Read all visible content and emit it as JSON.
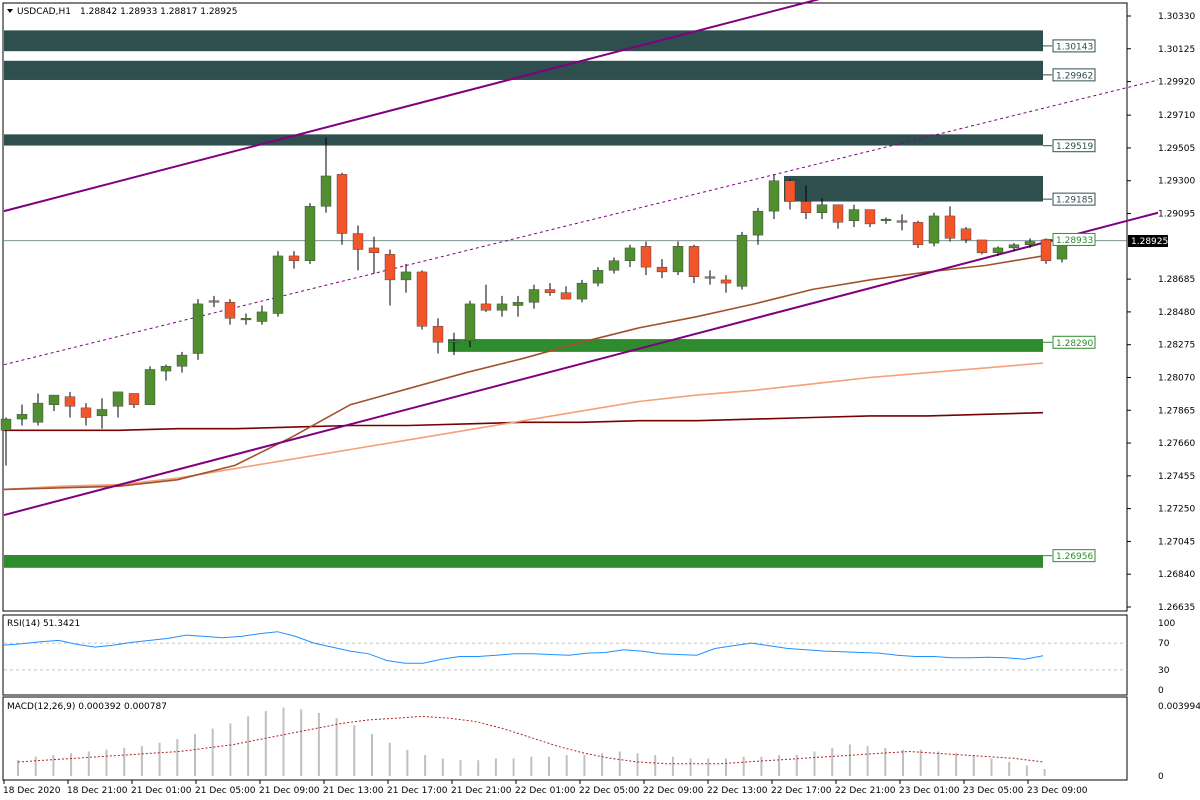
{
  "header": {
    "symbol_timeframe": "USDCAD,H1",
    "ohlc": "1.28842 1.28933 1.28817 1.28925"
  },
  "price_axis": {
    "ticks": [
      "1.30330",
      "1.30125",
      "1.29920",
      "1.29710",
      "1.29505",
      "1.29300",
      "1.29095",
      "1.28685",
      "1.28480",
      "1.28275",
      "1.28070",
      "1.27865",
      "1.27660",
      "1.27455",
      "1.27250",
      "1.27045",
      "1.26840",
      "1.26635"
    ],
    "current_label": "1.28925"
  },
  "levels": [
    {
      "label": "1.30143",
      "color": "#2f4f4f"
    },
    {
      "label": "1.29962",
      "color": "#2f4f4f"
    },
    {
      "label": "1.29519",
      "color": "#2f4f4f"
    },
    {
      "label": "1.29185",
      "color": "#2f4f4f"
    },
    {
      "label": "1.28933",
      "color": "#2e8b2e"
    },
    {
      "label": "1.28290",
      "color": "#2e8b2e"
    },
    {
      "label": "1.26956",
      "color": "#2e8b2e"
    }
  ],
  "rsi": {
    "label": "RSI(14) 51.3421",
    "ticks": [
      "100",
      "70",
      "30",
      "0"
    ]
  },
  "macd": {
    "label": "MACD(12,26,9) 0.000392 0.000787",
    "ticks": [
      "0.003994",
      "0"
    ]
  },
  "time_axis": {
    "labels": [
      "18 Dec 2020",
      "18 Dec 21:00",
      "21 Dec 01:00",
      "21 Dec 05:00",
      "21 Dec 09:00",
      "21 Dec 13:00",
      "21 Dec 17:00",
      "21 Dec 21:00",
      "22 Dec 01:00",
      "22 Dec 05:00",
      "22 Dec 09:00",
      "22 Dec 13:00",
      "22 Dec 17:00",
      "22 Dec 21:00",
      "23 Dec 01:00",
      "23 Dec 05:00",
      "23 Dec 09:00"
    ]
  },
  "colors": {
    "bull": "#4f8f2f",
    "bear": "#f2552a",
    "zone_dark": "#2f4f4f",
    "zone_green": "#2e8b2e",
    "channel": "#800080",
    "ma_fast": "#a0522d",
    "ma_mid": "#f4a07a",
    "ma_slow": "#7a0000",
    "rsi_line": "#1e90ff",
    "macd_signal": "#b22222",
    "macd_hist": "#c0c0c0"
  },
  "chart_data": {
    "type": "candlestick",
    "symbol": "USDCAD",
    "timeframe": "H1",
    "ylim": [
      1.26635,
      1.3033
    ],
    "candles": [
      {
        "o": 1.2774,
        "h": 1.2782,
        "l": 1.2752,
        "c": 1.2781
      },
      {
        "o": 1.2781,
        "h": 1.279,
        "l": 1.2777,
        "c": 1.2784
      },
      {
        "o": 1.2779,
        "h": 1.2797,
        "l": 1.2777,
        "c": 1.2791
      },
      {
        "o": 1.279,
        "h": 1.2796,
        "l": 1.2786,
        "c": 1.2796
      },
      {
        "o": 1.2795,
        "h": 1.2798,
        "l": 1.2782,
        "c": 1.2789
      },
      {
        "o": 1.2788,
        "h": 1.2791,
        "l": 1.2777,
        "c": 1.2782
      },
      {
        "o": 1.2783,
        "h": 1.2794,
        "l": 1.2775,
        "c": 1.2787
      },
      {
        "o": 1.2789,
        "h": 1.2797,
        "l": 1.2782,
        "c": 1.2798
      },
      {
        "o": 1.2797,
        "h": 1.2797,
        "l": 1.2788,
        "c": 1.279
      },
      {
        "o": 1.279,
        "h": 1.2814,
        "l": 1.279,
        "c": 1.2812
      },
      {
        "o": 1.2811,
        "h": 1.2815,
        "l": 1.2805,
        "c": 1.2814
      },
      {
        "o": 1.2814,
        "h": 1.2823,
        "l": 1.281,
        "c": 1.2821
      },
      {
        "o": 1.2822,
        "h": 1.2856,
        "l": 1.2818,
        "c": 1.2853
      },
      {
        "o": 1.2855,
        "h": 1.2858,
        "l": 1.2851,
        "c": 1.2854
      },
      {
        "o": 1.2854,
        "h": 1.2856,
        "l": 1.284,
        "c": 1.2844
      },
      {
        "o": 1.2843,
        "h": 1.2847,
        "l": 1.284,
        "c": 1.2844
      },
      {
        "o": 1.2842,
        "h": 1.2852,
        "l": 1.284,
        "c": 1.2848
      },
      {
        "o": 1.2847,
        "h": 1.2886,
        "l": 1.2845,
        "c": 1.2883
      },
      {
        "o": 1.2883,
        "h": 1.2886,
        "l": 1.2875,
        "c": 1.288
      },
      {
        "o": 1.288,
        "h": 1.2916,
        "l": 1.2878,
        "c": 1.2914
      },
      {
        "o": 1.2914,
        "h": 1.2957,
        "l": 1.291,
        "c": 1.2933
      },
      {
        "o": 1.2934,
        "h": 1.2935,
        "l": 1.289,
        "c": 1.2897
      },
      {
        "o": 1.2897,
        "h": 1.2902,
        "l": 1.2874,
        "c": 1.2887
      },
      {
        "o": 1.2888,
        "h": 1.2895,
        "l": 1.2872,
        "c": 1.2885
      },
      {
        "o": 1.2884,
        "h": 1.2887,
        "l": 1.2852,
        "c": 1.2868
      },
      {
        "o": 1.2868,
        "h": 1.2878,
        "l": 1.286,
        "c": 1.2873
      },
      {
        "o": 1.2873,
        "h": 1.2874,
        "l": 1.2837,
        "c": 1.2839
      },
      {
        "o": 1.2839,
        "h": 1.2844,
        "l": 1.2822,
        "c": 1.2829
      },
      {
        "o": 1.2829,
        "h": 1.2835,
        "l": 1.2821,
        "c": 1.283
      },
      {
        "o": 1.283,
        "h": 1.2855,
        "l": 1.2826,
        "c": 1.2853
      },
      {
        "o": 1.2853,
        "h": 1.2865,
        "l": 1.2848,
        "c": 1.2849
      },
      {
        "o": 1.2849,
        "h": 1.2858,
        "l": 1.2845,
        "c": 1.2853
      },
      {
        "o": 1.2852,
        "h": 1.2858,
        "l": 1.2845,
        "c": 1.2854
      },
      {
        "o": 1.2854,
        "h": 1.2865,
        "l": 1.285,
        "c": 1.2862
      },
      {
        "o": 1.2862,
        "h": 1.2866,
        "l": 1.2858,
        "c": 1.286
      },
      {
        "o": 1.286,
        "h": 1.2864,
        "l": 1.2856,
        "c": 1.2856
      },
      {
        "o": 1.2856,
        "h": 1.2868,
        "l": 1.2854,
        "c": 1.2866
      },
      {
        "o": 1.2866,
        "h": 1.2876,
        "l": 1.2864,
        "c": 1.2874
      },
      {
        "o": 1.2874,
        "h": 1.2882,
        "l": 1.2872,
        "c": 1.288
      },
      {
        "o": 1.288,
        "h": 1.289,
        "l": 1.2876,
        "c": 1.2888
      },
      {
        "o": 1.2889,
        "h": 1.2892,
        "l": 1.2871,
        "c": 1.2876
      },
      {
        "o": 1.2876,
        "h": 1.2881,
        "l": 1.2869,
        "c": 1.2873
      },
      {
        "o": 1.2873,
        "h": 1.2892,
        "l": 1.2871,
        "c": 1.2889
      },
      {
        "o": 1.2889,
        "h": 1.289,
        "l": 1.2866,
        "c": 1.287
      },
      {
        "o": 1.287,
        "h": 1.2874,
        "l": 1.2865,
        "c": 1.2869
      },
      {
        "o": 1.2868,
        "h": 1.2871,
        "l": 1.286,
        "c": 1.2866
      },
      {
        "o": 1.2864,
        "h": 1.2898,
        "l": 1.2862,
        "c": 1.2896
      },
      {
        "o": 1.2896,
        "h": 1.2913,
        "l": 1.289,
        "c": 1.2911
      },
      {
        "o": 1.2911,
        "h": 1.2934,
        "l": 1.2906,
        "c": 1.293
      },
      {
        "o": 1.293,
        "h": 1.2931,
        "l": 1.2912,
        "c": 1.2917
      },
      {
        "o": 1.2917,
        "h": 1.2927,
        "l": 1.2906,
        "c": 1.291
      },
      {
        "o": 1.291,
        "h": 1.2919,
        "l": 1.2906,
        "c": 1.2915
      },
      {
        "o": 1.2915,
        "h": 1.2915,
        "l": 1.29,
        "c": 1.2904
      },
      {
        "o": 1.2905,
        "h": 1.2915,
        "l": 1.2901,
        "c": 1.2912
      },
      {
        "o": 1.2912,
        "h": 1.2912,
        "l": 1.2901,
        "c": 1.2903
      },
      {
        "o": 1.2905,
        "h": 1.2907,
        "l": 1.2903,
        "c": 1.2906
      },
      {
        "o": 1.2905,
        "h": 1.2909,
        "l": 1.2899,
        "c": 1.2904
      },
      {
        "o": 1.2904,
        "h": 1.2905,
        "l": 1.2888,
        "c": 1.289
      },
      {
        "o": 1.2891,
        "h": 1.291,
        "l": 1.2889,
        "c": 1.2908
      },
      {
        "o": 1.2908,
        "h": 1.2914,
        "l": 1.2892,
        "c": 1.2894
      },
      {
        "o": 1.29,
        "h": 1.2901,
        "l": 1.2891,
        "c": 1.2893
      },
      {
        "o": 1.2893,
        "h": 1.2893,
        "l": 1.2884,
        "c": 1.2885
      },
      {
        "o": 1.2885,
        "h": 1.2889,
        "l": 1.2883,
        "c": 1.2888
      },
      {
        "o": 1.2888,
        "h": 1.2891,
        "l": 1.2886,
        "c": 1.289
      },
      {
        "o": 1.289,
        "h": 1.2894,
        "l": 1.2888,
        "c": 1.2892
      },
      {
        "o": 1.2893,
        "h": 1.2894,
        "l": 1.2878,
        "c": 1.288
      },
      {
        "o": 1.2881,
        "h": 1.2893,
        "l": 1.2879,
        "c": 1.2892
      }
    ],
    "zones": [
      {
        "top": 1.3024,
        "bottom": 1.3011,
        "x_start": 0,
        "x_end": 66
      },
      {
        "top": 1.3005,
        "bottom": 1.2993,
        "x_start": 0,
        "x_end": 66
      },
      {
        "top": 1.2959,
        "bottom": 1.2952,
        "x_start": 0,
        "x_end": 66
      },
      {
        "top": 1.2933,
        "bottom": 1.2917,
        "x_start": 49,
        "x_end": 66
      },
      {
        "top": 1.2831,
        "bottom": 1.2823,
        "x_start": 28,
        "x_end": 66
      },
      {
        "top": 1.2696,
        "bottom": 1.2688,
        "x_start": 0,
        "x_end": 66
      }
    ],
    "channel_lines": [
      {
        "x1": 0,
        "y1": 1.2911,
        "x2": 51,
        "y2": 1.3044,
        "style": "solid"
      },
      {
        "x1": 0,
        "y1": 1.2721,
        "x2": 72,
        "y2": 1.291,
        "style": "solid"
      },
      {
        "x1": 0,
        "y1": 1.2815,
        "x2": 72,
        "y2": 1.2993,
        "style": "dashed"
      }
    ],
    "price_line": 1.28925,
    "moving_averages": [
      {
        "key": "ma_slow",
        "values": [
          1.2774,
          1.2774,
          1.2774,
          1.2775,
          1.2775,
          1.2776,
          1.2777,
          1.2777,
          1.2778,
          1.2779,
          1.2779,
          1.278,
          1.278,
          1.2781,
          1.2782,
          1.2783,
          1.2783,
          1.2784,
          1.2785
        ]
      },
      {
        "key": "ma_mid",
        "values": [
          1.2737,
          1.2739,
          1.274,
          1.2744,
          1.275,
          1.2756,
          1.2762,
          1.2768,
          1.2774,
          1.278,
          1.2786,
          1.2792,
          1.2796,
          1.2799,
          1.2803,
          1.2807,
          1.281,
          1.2813,
          1.2816
        ]
      },
      {
        "key": "ma_fast",
        "values": [
          1.2737,
          1.2738,
          1.2739,
          1.2743,
          1.2752,
          1.277,
          1.279,
          1.28,
          1.281,
          1.2819,
          1.2829,
          1.2838,
          1.2845,
          1.2853,
          1.2862,
          1.2868,
          1.2873,
          1.2877,
          1.2883
        ]
      }
    ],
    "rsi_values": [
      67,
      69,
      72,
      74,
      68,
      64,
      67,
      71,
      74,
      77,
      82,
      80,
      78,
      80,
      84,
      87,
      80,
      70,
      64,
      58,
      54,
      44,
      40,
      40,
      46,
      50,
      50,
      52,
      54,
      54,
      53,
      52,
      55,
      56,
      60,
      58,
      54,
      53,
      52,
      62,
      66,
      70,
      66,
      62,
      60,
      58,
      57,
      56,
      55,
      52,
      50,
      50,
      48,
      48,
      49,
      48,
      46,
      51
    ],
    "macd_hist": [
      0.0009,
      0.0011,
      0.0012,
      0.0013,
      0.0014,
      0.0015,
      0.0016,
      0.0017,
      0.0019,
      0.0021,
      0.0024,
      0.0027,
      0.003,
      0.0034,
      0.0037,
      0.0039,
      0.0038,
      0.0036,
      0.0033,
      0.0029,
      0.0024,
      0.0019,
      0.0015,
      0.0012,
      0.001,
      0.0009,
      0.0009,
      0.001,
      0.001,
      0.0011,
      0.0011,
      0.0012,
      0.0012,
      0.0013,
      0.0014,
      0.0013,
      0.0012,
      0.0011,
      0.001,
      0.001,
      0.001,
      0.0011,
      0.0011,
      0.0012,
      0.0012,
      0.0014,
      0.0016,
      0.0018,
      0.0017,
      0.0016,
      0.0015,
      0.0015,
      0.0014,
      0.0013,
      0.0012,
      0.001,
      0.0008,
      0.0006,
      0.0004
    ],
    "macd_signal": [
      0.0008,
      0.0009,
      0.001,
      0.0011,
      0.0012,
      0.0013,
      0.0014,
      0.0016,
      0.0018,
      0.0021,
      0.0024,
      0.0027,
      0.003,
      0.0032,
      0.0033,
      0.0034,
      0.0033,
      0.0031,
      0.0027,
      0.0022,
      0.0017,
      0.0013,
      0.001,
      0.0008,
      0.0007,
      0.0007,
      0.0007,
      0.0008,
      0.0009,
      0.001,
      0.0011,
      0.0012,
      0.0013,
      0.0014,
      0.0013,
      0.0012,
      0.0011,
      0.001,
      0.0008
    ]
  }
}
